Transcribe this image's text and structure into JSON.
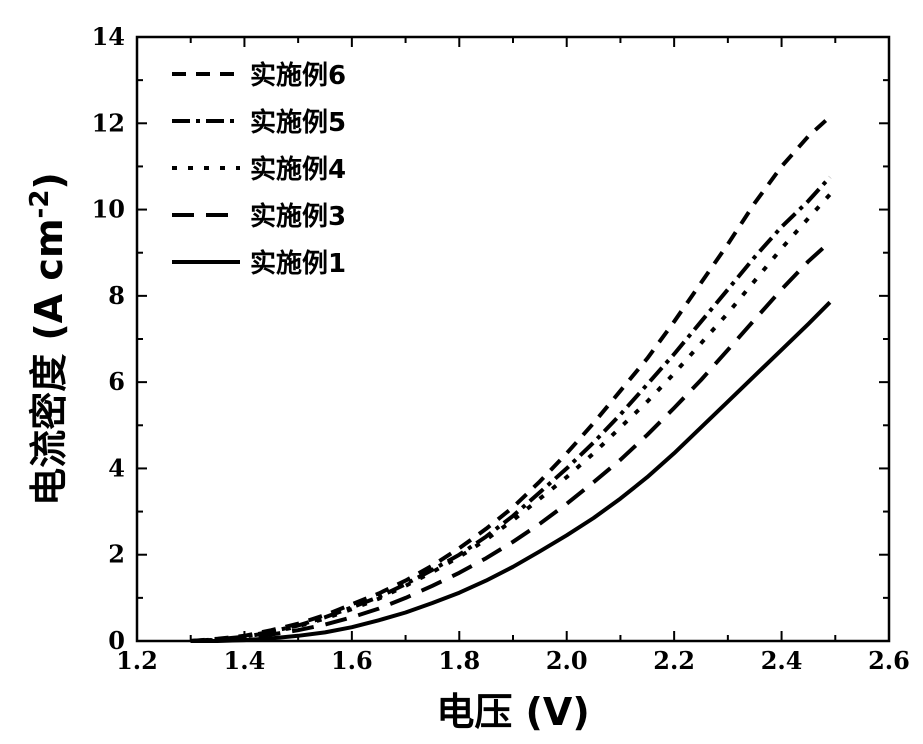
{
  "chart_data": {
    "type": "line",
    "xlabel": "电压 (V)",
    "ylabel_main": "电流密度 (A cm",
    "ylabel_sup": "-2",
    "ylabel_close": ")",
    "xlim": [
      1.2,
      2.6
    ],
    "ylim": [
      0,
      14
    ],
    "xticks": [
      "1.2",
      "1.4",
      "1.6",
      "1.8",
      "2.0",
      "2.2",
      "2.4",
      "2.6"
    ],
    "yticks": [
      "0",
      "2",
      "4",
      "6",
      "8",
      "10",
      "12",
      "14"
    ],
    "grid": false,
    "legend_position": "top-left",
    "x": [
      1.3,
      1.35,
      1.4,
      1.45,
      1.5,
      1.55,
      1.6,
      1.65,
      1.7,
      1.75,
      1.8,
      1.85,
      1.9,
      1.95,
      2.0,
      2.05,
      2.1,
      2.15,
      2.2,
      2.25,
      2.3,
      2.35,
      2.4,
      2.45,
      2.49
    ],
    "series": [
      {
        "name": "实施例6",
        "dash": "14,10",
        "values": [
          0.0,
          0.05,
          0.12,
          0.25,
          0.4,
          0.6,
          0.85,
          1.1,
          1.4,
          1.75,
          2.15,
          2.6,
          3.1,
          3.7,
          4.35,
          5.05,
          5.8,
          6.55,
          7.4,
          8.3,
          9.2,
          10.15,
          11.0,
          11.7,
          12.15
        ]
      },
      {
        "name": "实施例5",
        "dash": "18,6,4,6",
        "values": [
          0.0,
          0.04,
          0.1,
          0.22,
          0.36,
          0.55,
          0.78,
          1.02,
          1.32,
          1.65,
          2.0,
          2.42,
          2.9,
          3.45,
          4.0,
          4.6,
          5.25,
          5.95,
          6.65,
          7.4,
          8.15,
          8.9,
          9.6,
          10.2,
          10.75
        ]
      },
      {
        "name": "实施例4",
        "dash": "5,11",
        "values": [
          0.0,
          0.03,
          0.1,
          0.2,
          0.34,
          0.52,
          0.74,
          0.98,
          1.28,
          1.6,
          1.95,
          2.35,
          2.8,
          3.3,
          3.8,
          4.35,
          4.95,
          5.55,
          6.2,
          6.9,
          7.6,
          8.35,
          9.1,
          9.8,
          10.35
        ]
      },
      {
        "name": "实施例3",
        "dash": "22,12",
        "values": [
          0.0,
          0.02,
          0.07,
          0.15,
          0.25,
          0.38,
          0.55,
          0.75,
          1.0,
          1.28,
          1.58,
          1.92,
          2.3,
          2.72,
          3.18,
          3.68,
          4.2,
          4.78,
          5.4,
          6.05,
          6.75,
          7.45,
          8.15,
          8.8,
          9.25
        ]
      },
      {
        "name": "实施例1",
        "dash": "",
        "values": [
          0.0,
          0.0,
          0.02,
          0.06,
          0.12,
          0.2,
          0.32,
          0.48,
          0.66,
          0.88,
          1.12,
          1.4,
          1.72,
          2.08,
          2.45,
          2.85,
          3.3,
          3.8,
          4.35,
          4.95,
          5.55,
          6.15,
          6.75,
          7.35,
          7.85
        ]
      }
    ]
  }
}
